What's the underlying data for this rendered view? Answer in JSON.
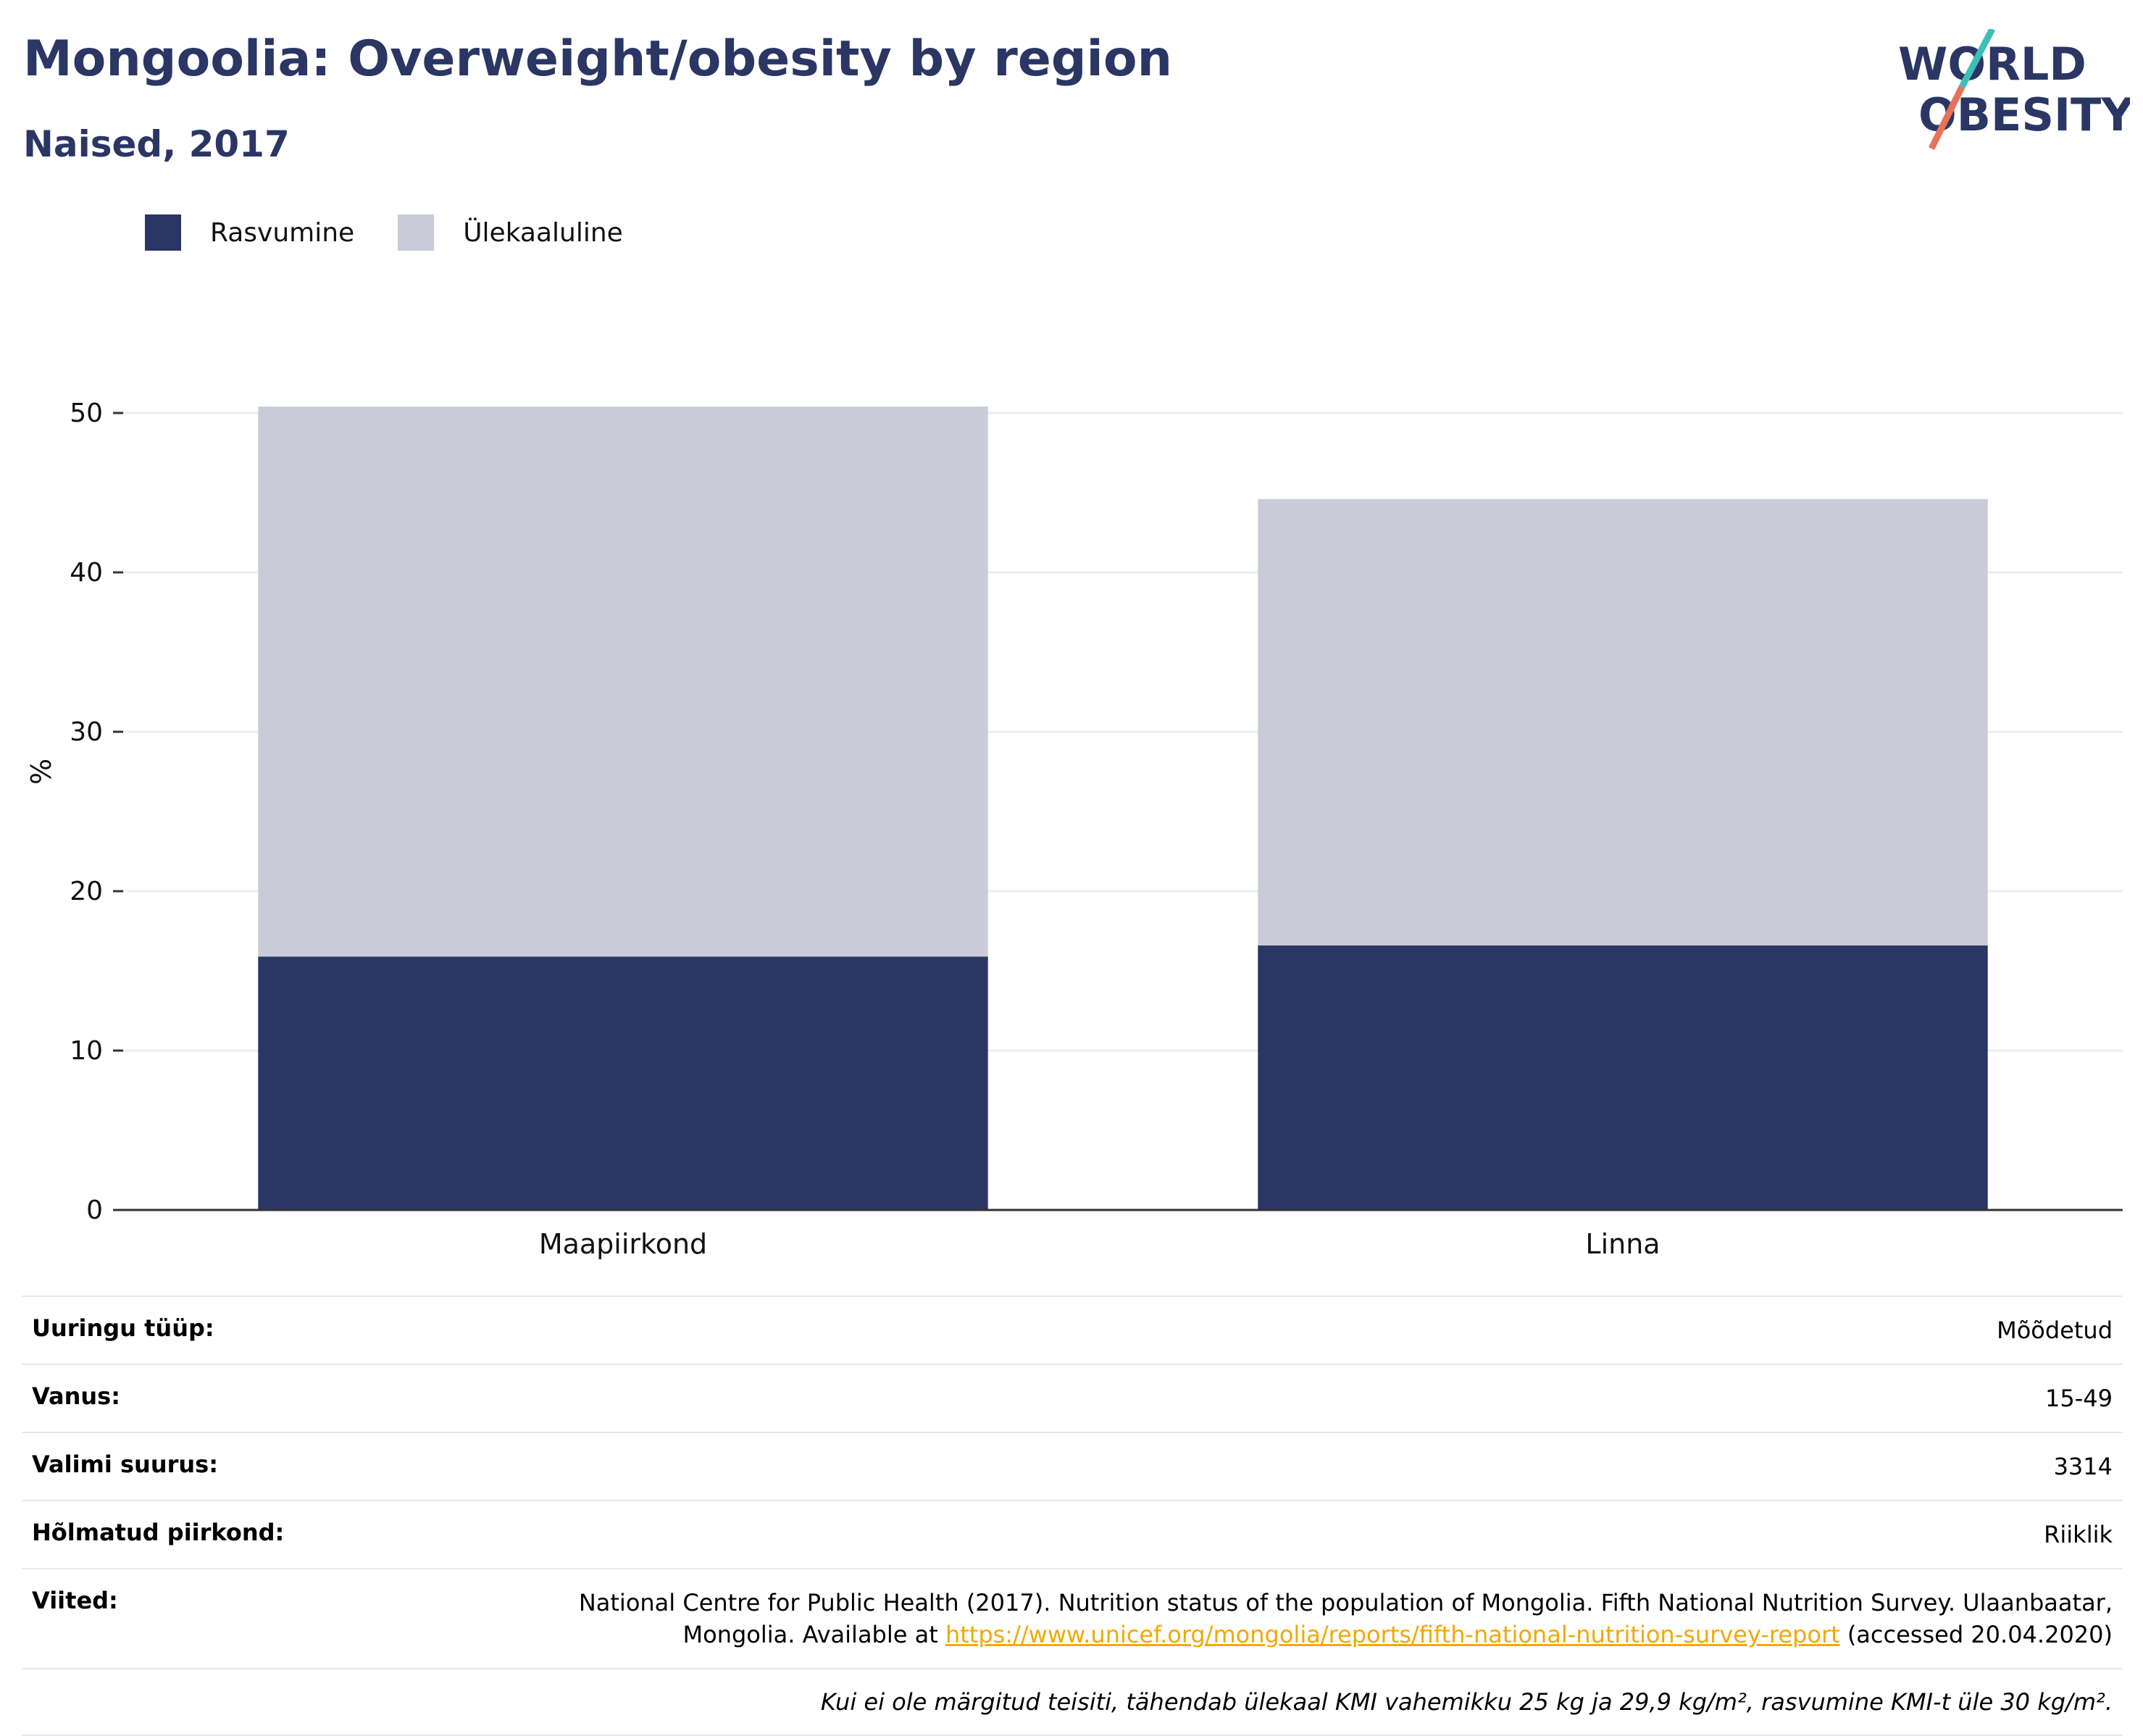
{
  "header": {
    "title": "Mongoolia: Overweight/obesity by region",
    "subtitle": "Naised, 2017"
  },
  "logo": {
    "line1": "WORLD",
    "line2": "OBESITY"
  },
  "colors": {
    "obesity": "#2a3664",
    "overweight": "#c9ccd8",
    "accent_teal": "#3dbfb8",
    "accent_red": "#e8715a",
    "link": "#f2a900"
  },
  "chart_data": {
    "type": "bar",
    "stacked": true,
    "categories": [
      "Maapiirkond",
      "Linna"
    ],
    "series": [
      {
        "name": "Rasvumine",
        "values": [
          15.9,
          16.6
        ]
      },
      {
        "name": "Ülekaaluline",
        "values": [
          34.5,
          28.0
        ]
      }
    ],
    "ylabel": "%",
    "ylim": [
      0,
      55
    ],
    "yticks": [
      0,
      10,
      20,
      30,
      40,
      50
    ],
    "grid": true,
    "legend": "top-left"
  },
  "info": {
    "rows": [
      {
        "key": "Uuringu tüüp:",
        "value": "Mõõdetud"
      },
      {
        "key": "Vanus:",
        "value": "15-49"
      },
      {
        "key": "Valimi suurus:",
        "value": "3314"
      },
      {
        "key": "Hõlmatud piirkond:",
        "value": "Riiklik"
      }
    ],
    "references_key": "Viited:",
    "references_line1": "National Centre for Public Health (2017). Nutrition status of the population of Mongolia. Fifth National Nutrition Survey. Ulaanbaatar,",
    "references_prefix": "Mongolia. Available at",
    "references_link": "https://www.unicef.org/mongolia/reports/fifth-national-nutrition-survey-report",
    "references_suffix": "(accessed 20.04.2020)",
    "note": "Kui ei ole märgitud teisiti, tähendab ülekaal KMI vahemikku 25 kg ja 29,9 kg/m², rasvumine KMI-t üle 30 kg/m²."
  }
}
